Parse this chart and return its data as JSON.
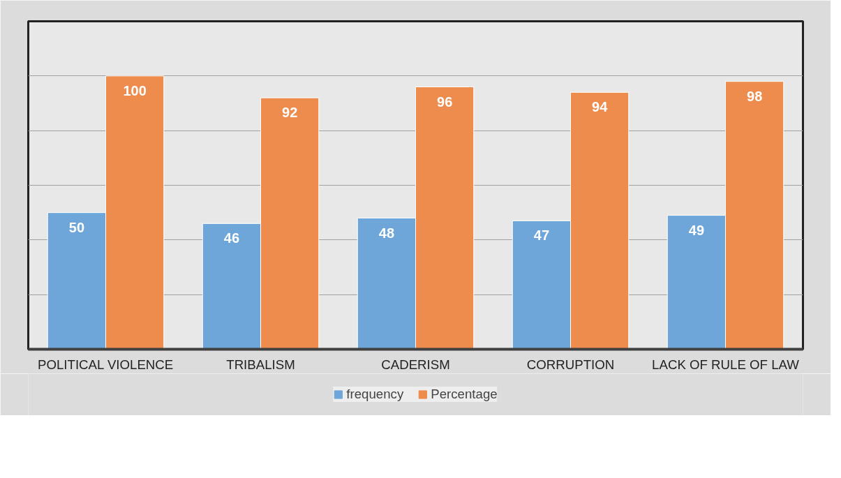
{
  "chart_data": {
    "type": "bar",
    "categories": [
      "POLITICAL VIOLENCE",
      "TRIBALISM",
      "CADERISM",
      "CORRUPTION",
      "LACK OF RULE OF LAW"
    ],
    "series": [
      {
        "name": "frequency",
        "color": "#6fa6d9",
        "values": [
          50,
          46,
          48,
          47,
          49
        ]
      },
      {
        "name": "Percentage",
        "color": "#ed8c4c",
        "values": [
          100,
          92,
          96,
          94,
          98
        ]
      }
    ],
    "ylim": [
      0,
      120
    ],
    "yticks": [
      {
        "value": 0,
        "label": null
      },
      {
        "value": 20,
        "label": null
      },
      {
        "value": 40,
        "label": null
      },
      {
        "value": 60,
        "label": null
      },
      {
        "value": 80,
        "label": null
      },
      {
        "value": 100,
        "label": null
      },
      {
        "value": 120,
        "label": null
      }
    ],
    "tick_labels": "x",
    "grid": "y",
    "legend": "bottom",
    "data_labels": true
  }
}
